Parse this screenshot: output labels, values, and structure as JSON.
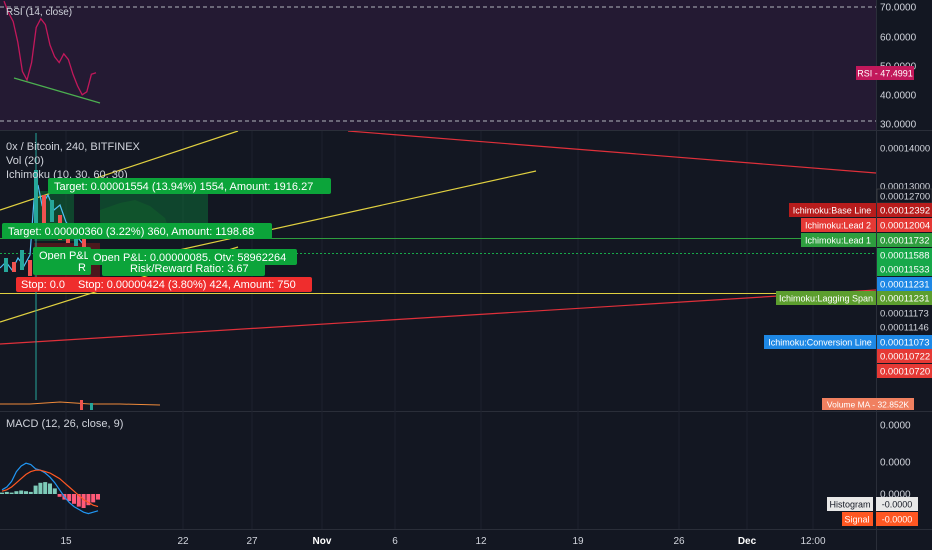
{
  "colors": {
    "background": "#131722",
    "rsi_bg": "#241a33",
    "grid": "#2a2e39",
    "axis_text": "#d1d4dc",
    "rsi_line": "#c2185b",
    "rsi_divergence": "#4caf50",
    "trend_yellow": "#e0d040",
    "trend_red": "#e0303a",
    "green": "#26a69a",
    "profit_green": "#0ca43a",
    "loss_red": "#ef2d2d",
    "base_line_red": "#b71c1c",
    "lead2_red": "#e53935",
    "lead1_green": "#2e9e3e",
    "lagging_green": "#5c9e2e",
    "conversion_blue": "#1e88e5",
    "price_tag_green": "#17a84a",
    "macd_line": "#2196f3",
    "signal_line": "#ff5722",
    "hist_up": "#7ecbb9",
    "hist_down": "#ff5a78"
  },
  "rsi_panel": {
    "legend": "RSI (14, close)",
    "axis_ticks": [
      "70.0000",
      "60.0000",
      "50.0000",
      "40.0000",
      "30.0000"
    ],
    "value_tag": "RSI - 47.4991",
    "series": [
      72,
      68,
      65,
      58,
      48,
      45,
      51,
      63,
      66,
      64,
      57,
      53,
      51,
      54,
      52,
      47,
      43,
      40,
      41,
      47,
      47.5
    ]
  },
  "main_panel": {
    "legend_title": "0x / Bitcoin, 240, BITFINEX",
    "legend_vol": "Vol (20)",
    "legend_ichimoku": "Ichimoku (10, 30, 60, 30)",
    "axis_ticks": [
      "0.00014000",
      "0.00013000",
      "0.00012700",
      "0.00012392",
      "0.00012004",
      "0.00011732",
      "0.00011588",
      "0.00011533",
      "0.00011231",
      "0.00011231",
      "0.00011173",
      "0.00011146",
      "0.00011073",
      "0.00010722",
      "0.00010720"
    ],
    "labels": {
      "base_line": "Ichimoku:Base Line",
      "lead2": "Ichimoku:Lead 2",
      "lead1": "Ichimoku:Lead 1",
      "lagging": "Ichimoku:Lagging Span",
      "conversion": "Ichimoku:Conversion Line",
      "volume_ma": "Volume MA - 32.852K"
    },
    "tools": {
      "target_long": "Target: 0.00001554 (13.94%) 1554, Amount: 1916.27",
      "target_short": "Target: 0.00000360 (3.22%) 360, Amount: 1198.68",
      "open_pl_short": "Open P&L",
      "short_r": "R",
      "open_pl_long": "Open P&L: 0.00000085, Qty: 58962264",
      "risk_reward": "Risk/Reward Ratio: 3.67",
      "stop_short": "Stop: 0.0",
      "stop_long": "Stop: 0.00000424 (3.80%) 424, Amount: 750"
    }
  },
  "macd_panel": {
    "legend": "MACD (12, 26, close, 9)",
    "axis_ticks": [
      "0.0000",
      "0.0000",
      "0.0000"
    ],
    "histogram_tag": "Histogram",
    "histogram_value": "-0.0000",
    "signal_tag": "Signal",
    "signal_value": "-0.0000"
  },
  "time_axis": {
    "ticks": [
      "15",
      "22",
      "27",
      "Nov",
      "6",
      "12",
      "19",
      "26",
      "Dec",
      "12:00"
    ]
  },
  "chart_data": [
    {
      "type": "line",
      "title": "RSI (14, close)",
      "series": [
        {
          "name": "RSI",
          "values": [
            72,
            68,
            65,
            58,
            48,
            45,
            51,
            63,
            66,
            64,
            57,
            53,
            51,
            54,
            52,
            47,
            43,
            40,
            41,
            47,
            47.5
          ]
        }
      ],
      "ylim": [
        30,
        70
      ],
      "last_value": 47.4991
    },
    {
      "type": "line",
      "title": "0x / Bitcoin, 240, BITFINEX",
      "x_ticks": [
        "15",
        "22",
        "27",
        "Nov",
        "6",
        "12",
        "19",
        "26",
        "Dec",
        "12:00"
      ],
      "ylim": [
        0.0001065,
        0.0001415
      ],
      "levels": [
        {
          "name": "Ichimoku:Base Line",
          "value": 0.00012392
        },
        {
          "name": "Ichimoku:Lead 2",
          "value": 0.00012004
        },
        {
          "name": "Ichimoku:Lead 1",
          "value": 0.00011732
        },
        {
          "name": "Ichimoku:Lagging Span",
          "value": 0.00011231
        },
        {
          "name": "Ichimoku:Conversion Line",
          "value": 0.00011073
        }
      ]
    },
    {
      "type": "bar",
      "title": "MACD (12, 26, close, 9)",
      "series": [
        {
          "name": "Histogram",
          "values": [
            0.1,
            0.15,
            0.1,
            0.2,
            0.25,
            0.2,
            0.15,
            0.6,
            0.8,
            0.85,
            0.75,
            0.4,
            -0.2,
            -0.4,
            -0.5,
            -0.7,
            -0.9,
            -1.0,
            -0.8,
            -0.6,
            -0.4
          ]
        },
        {
          "name": "MACD",
          "values": [
            0.3,
            0.5,
            0.9,
            1.6,
            2.0,
            2.2,
            2.1,
            1.8,
            1.7,
            1.5,
            1.2,
            0.8,
            0.3,
            -0.2,
            -0.6,
            -0.9,
            -1.1,
            -1.3,
            -1.4,
            -1.3,
            -1.2
          ]
        },
        {
          "name": "Signal",
          "values": [
            0.2,
            0.3,
            0.5,
            0.8,
            1.1,
            1.4,
            1.6,
            1.7,
            1.7,
            1.6,
            1.5,
            1.3,
            1.1,
            0.8,
            0.5,
            0.2,
            -0.1,
            -0.4,
            -0.6,
            -0.8,
            -0.9
          ]
        }
      ]
    }
  ]
}
